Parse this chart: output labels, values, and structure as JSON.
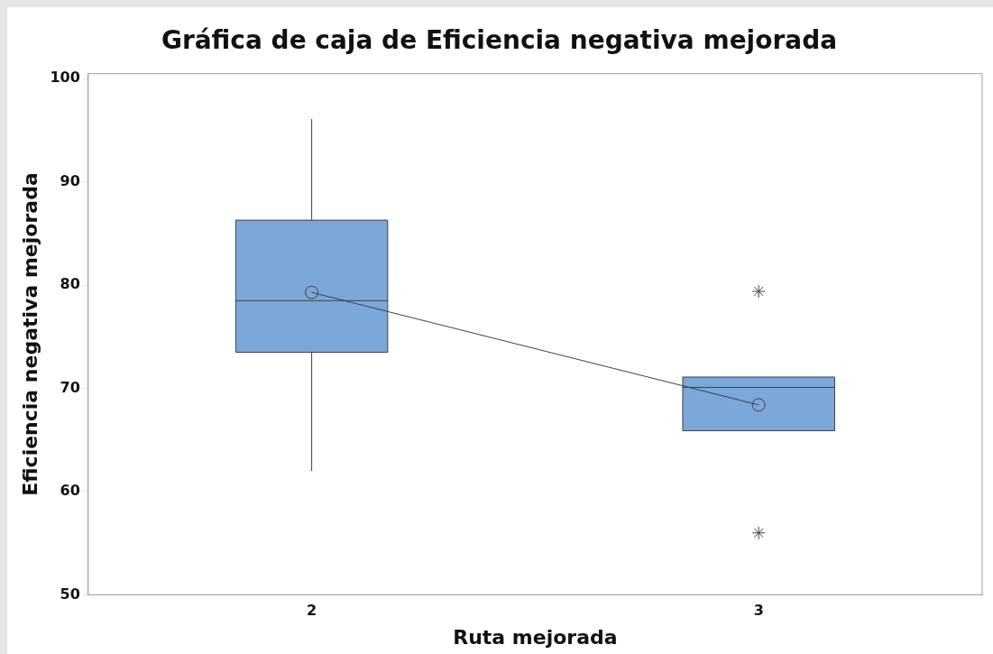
{
  "chart_data": {
    "type": "box",
    "title": "Gráfica de caja de Eficiencia negativa mejorada",
    "xlabel": "Ruta mejorada",
    "ylabel": "Eficiencia negativa mejorada",
    "categories": [
      "2",
      "3"
    ],
    "ylim": [
      50,
      100.5
    ],
    "yticks": [
      50,
      60,
      70,
      80,
      90,
      100
    ],
    "grid": false,
    "legend": false,
    "series": [
      {
        "color": "#7ba7d9",
        "boxes": [
          {
            "low": 62.0,
            "q1": 73.5,
            "median": 78.5,
            "q3": 86.3,
            "high": 96.1
          },
          {
            "low": 65.9,
            "q1": 65.9,
            "median": 70.1,
            "q3": 71.1,
            "high": 71.1,
            "outliers": [
              79.4,
              56.0
            ]
          }
        ]
      },
      {
        "type": "line",
        "color": "#404040",
        "values": [
          79.3,
          68.4
        ],
        "marker": "circle",
        "line_style": "solid"
      }
    ]
  }
}
